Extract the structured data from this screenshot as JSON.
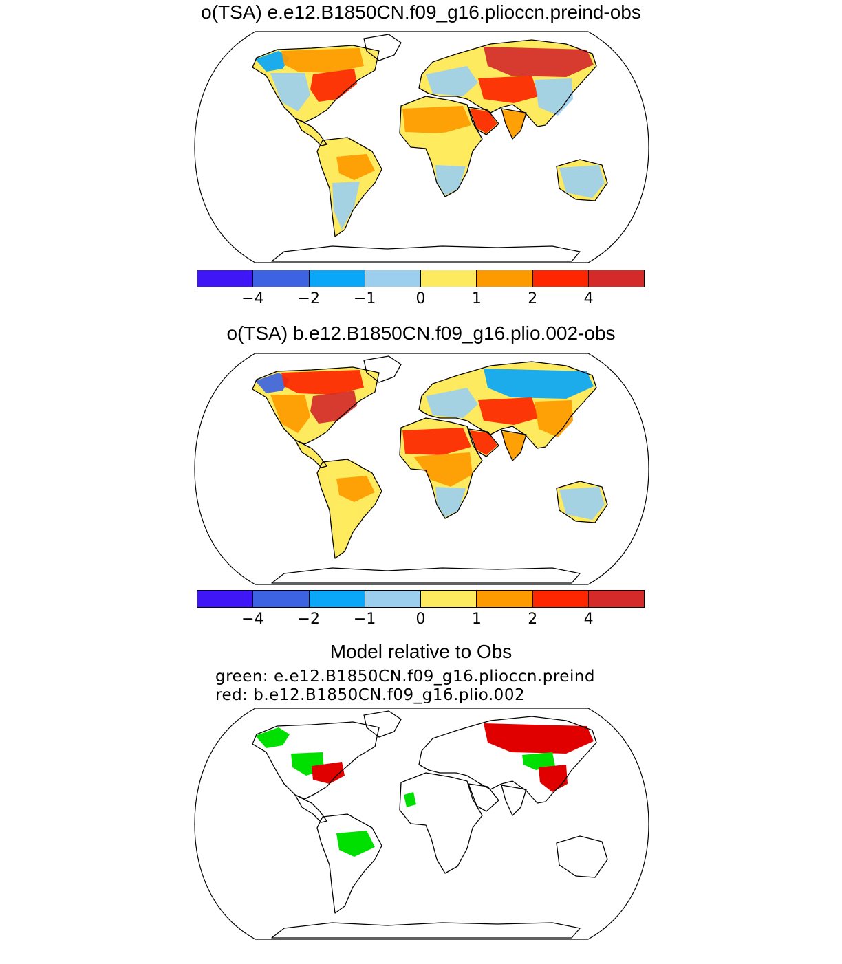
{
  "panel1": {
    "title": "o(TSA) e.e12.B1850CN.f09_g16.plioccn.preind-obs"
  },
  "panel2": {
    "title": "o(TSA) b.e12.B1850CN.f09_g16.plio.002-obs"
  },
  "panel3": {
    "title": "Model relative to Obs",
    "green_label": "green: e.e12.B1850CN.f09_g16.plioccn.preind",
    "red_label": "red: b.e12.B1850CN.f09_g16.plio.002",
    "green_color": "#00e000",
    "red_color": "#e00000"
  },
  "colorbar": {
    "colors": [
      "#3f16f5",
      "#3d63e2",
      "#0aa6f7",
      "#9ccfee",
      "#feea5e",
      "#fd9a00",
      "#fd2600",
      "#d42a2a"
    ],
    "ticks": [
      "−4",
      "−2",
      "−1",
      "0",
      "1",
      "2",
      "4"
    ]
  },
  "map": {
    "projection": "Robinson",
    "panel1_regions": [
      {
        "region": "Alaska",
        "level": -2
      },
      {
        "region": "Canada",
        "level": 1
      },
      {
        "region": "Eastern North America",
        "level": 2
      },
      {
        "region": "Western United States",
        "level": -1
      },
      {
        "region": "South America north",
        "level": 0
      },
      {
        "region": "Amazon",
        "level": 1
      },
      {
        "region": "South America south",
        "level": -1
      },
      {
        "region": "Sahara",
        "level": 1
      },
      {
        "region": "Central Africa",
        "level": 0
      },
      {
        "region": "Southern Africa",
        "level": -1
      },
      {
        "region": "Europe",
        "level": -1
      },
      {
        "region": "Arabia",
        "level": 2
      },
      {
        "region": "Siberia",
        "level": 4
      },
      {
        "region": "Central Asia",
        "level": 2
      },
      {
        "region": "South Asia",
        "level": 1
      },
      {
        "region": "East Asia",
        "level": -1
      },
      {
        "region": "Australia",
        "level": -1
      }
    ],
    "panel2_regions": [
      {
        "region": "Alaska",
        "level": -4
      },
      {
        "region": "Canada",
        "level": 2
      },
      {
        "region": "Eastern North America",
        "level": 4
      },
      {
        "region": "Western United States",
        "level": 1
      },
      {
        "region": "South America north",
        "level": 0
      },
      {
        "region": "Amazon",
        "level": 1
      },
      {
        "region": "South America south",
        "level": 0
      },
      {
        "region": "Sahara",
        "level": 2
      },
      {
        "region": "Central Africa",
        "level": 1
      },
      {
        "region": "Southern Africa",
        "level": -1
      },
      {
        "region": "Europe",
        "level": -1
      },
      {
        "region": "Arabia",
        "level": 2
      },
      {
        "region": "Siberia",
        "level": -2
      },
      {
        "region": "Central Asia",
        "level": 2
      },
      {
        "region": "South Asia",
        "level": 1
      },
      {
        "region": "East Asia",
        "level": 1
      },
      {
        "region": "Australia",
        "level": -1
      }
    ],
    "panel3_regions": [
      {
        "region": "Alaska",
        "model": "green"
      },
      {
        "region": "Central United States",
        "model": "green"
      },
      {
        "region": "Eastern United States",
        "model": "red"
      },
      {
        "region": "Amazon",
        "model": "green"
      },
      {
        "region": "Siberia",
        "model": "red"
      },
      {
        "region": "Mongolia",
        "model": "green"
      },
      {
        "region": "China",
        "model": "red"
      },
      {
        "region": "West Africa coast",
        "model": "green"
      }
    ]
  }
}
